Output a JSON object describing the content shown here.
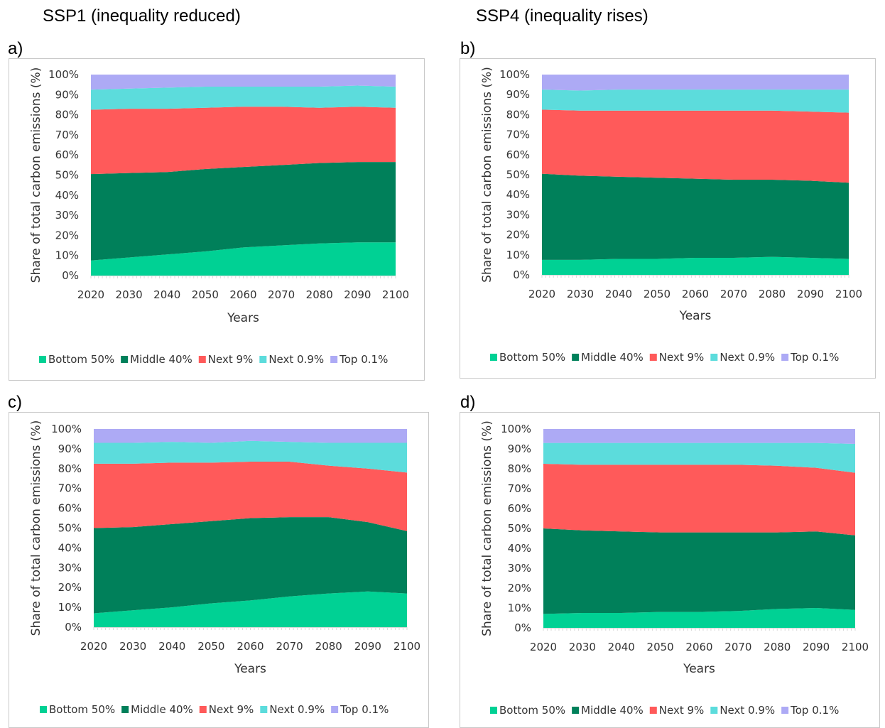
{
  "headings": {
    "left": "SSP1 (inequality reduced)",
    "right": "SSP4 (inequality rises)"
  },
  "colors": {
    "Bottom 50%": "#00d194",
    "Middle 40%": "#00805a",
    "Next 9%": "#ff5a5a",
    "Next 0.9%": "#5cdcdc",
    "Top 0.1%": "#adaaf5",
    "axis": "#d9d9d9"
  },
  "chart_data": [
    {
      "panel_label": "a)",
      "type": "area",
      "stacked": true,
      "x": [
        2020,
        2030,
        2040,
        2050,
        2060,
        2070,
        2080,
        2090,
        2100
      ],
      "series": [
        {
          "name": "Bottom 50%",
          "values": [
            7.5,
            9,
            10.5,
            12,
            14,
            15,
            16,
            16.5,
            16.5
          ]
        },
        {
          "name": "Middle 40%",
          "values": [
            43,
            42,
            41,
            41,
            40,
            40,
            40,
            40,
            40
          ]
        },
        {
          "name": "Next 9%",
          "values": [
            32,
            32,
            31.5,
            30.5,
            30,
            29,
            27.5,
            27.5,
            27
          ]
        },
        {
          "name": "Next 0.9%",
          "values": [
            10,
            10,
            10.5,
            10.5,
            10,
            10,
            10.5,
            10.5,
            10.5
          ]
        },
        {
          "name": "Top 0.1%",
          "values": [
            7.5,
            7,
            6.5,
            6,
            6,
            6,
            6,
            5.5,
            6
          ]
        }
      ],
      "xlabel": "Years",
      "ylabel": "Share of total carbon emissions (%)",
      "ylim": [
        0,
        100
      ],
      "yticks": [
        "0%",
        "10%",
        "20%",
        "30%",
        "40%",
        "50%",
        "60%",
        "70%",
        "80%",
        "90%",
        "100%"
      ],
      "xticks": [
        "2020",
        "2030",
        "2040",
        "2050",
        "2060",
        "2070",
        "2080",
        "2090",
        "2100"
      ],
      "legend": [
        "Bottom 50%",
        "Middle 40%",
        "Next 9%",
        "Next 0.9%",
        "Top 0.1%"
      ],
      "legend_position": "bottom"
    },
    {
      "panel_label": "b)",
      "type": "area",
      "stacked": true,
      "x": [
        2020,
        2030,
        2040,
        2050,
        2060,
        2070,
        2080,
        2090,
        2100
      ],
      "series": [
        {
          "name": "Bottom 50%",
          "values": [
            7.5,
            7.5,
            8,
            8,
            8.5,
            8.5,
            9,
            8.5,
            8
          ]
        },
        {
          "name": "Middle 40%",
          "values": [
            43,
            42,
            41,
            40.5,
            39.5,
            39,
            38.5,
            38.5,
            38
          ]
        },
        {
          "name": "Next 9%",
          "values": [
            32,
            32.5,
            33,
            33.5,
            34,
            34.5,
            34.5,
            34.5,
            35
          ]
        },
        {
          "name": "Next 0.9%",
          "values": [
            10,
            10,
            10.5,
            10.5,
            10.5,
            10.5,
            10.5,
            11,
            11.5
          ]
        },
        {
          "name": "Top 0.1%",
          "values": [
            7.5,
            8,
            7.5,
            7.5,
            7.5,
            7.5,
            7.5,
            7.5,
            7.5
          ]
        }
      ],
      "xlabel": "Years",
      "ylabel": "Share of total carbon emissions (%)",
      "ylim": [
        0,
        100
      ],
      "yticks": [
        "0%",
        "10%",
        "20%",
        "30%",
        "40%",
        "50%",
        "60%",
        "70%",
        "80%",
        "90%",
        "100%"
      ],
      "xticks": [
        "2020",
        "2030",
        "2040",
        "2050",
        "2060",
        "2070",
        "2080",
        "2090",
        "2100"
      ],
      "legend": [
        "Bottom 50%",
        "Middle 40%",
        "Next 9%",
        "Next 0.9%",
        "Top 0.1%"
      ],
      "legend_position": "bottom"
    },
    {
      "panel_label": "c)",
      "type": "area",
      "stacked": true,
      "x": [
        2020,
        2030,
        2040,
        2050,
        2060,
        2070,
        2080,
        2090,
        2100
      ],
      "series": [
        {
          "name": "Bottom 50%",
          "values": [
            7,
            8.5,
            10,
            12,
            13.5,
            15.5,
            17,
            18,
            17
          ]
        },
        {
          "name": "Middle 40%",
          "values": [
            43,
            42,
            42,
            41.5,
            41.5,
            40,
            38.5,
            35,
            31.5
          ]
        },
        {
          "name": "Next 9%",
          "values": [
            32.5,
            32,
            31,
            29.5,
            28.5,
            28,
            26,
            27,
            29.5
          ]
        },
        {
          "name": "Next 0.9%",
          "values": [
            10.5,
            10.5,
            10.5,
            10,
            10.5,
            10,
            11.5,
            13,
            15
          ]
        },
        {
          "name": "Top 0.1%",
          "values": [
            7,
            7,
            6.5,
            7,
            6,
            6.5,
            7,
            7,
            7
          ]
        }
      ],
      "xlabel": "Years",
      "ylabel": "Share of total carbon emissions (%)",
      "ylim": [
        0,
        100
      ],
      "yticks": [
        "0%",
        "10%",
        "20%",
        "30%",
        "40%",
        "50%",
        "60%",
        "70%",
        "80%",
        "90%",
        "100%"
      ],
      "xticks": [
        "2020",
        "2030",
        "2040",
        "2050",
        "2060",
        "2070",
        "2080",
        "2090",
        "2100"
      ],
      "legend": [
        "Bottom 50%",
        "Middle 40%",
        "Next 9%",
        "Next 0.9%",
        "Top 0.1%"
      ],
      "legend_position": "bottom"
    },
    {
      "panel_label": "d)",
      "type": "area",
      "stacked": true,
      "x": [
        2020,
        2030,
        2040,
        2050,
        2060,
        2070,
        2080,
        2090,
        2100
      ],
      "series": [
        {
          "name": "Bottom 50%",
          "values": [
            7,
            7.5,
            7.5,
            8,
            8,
            8.5,
            9.5,
            10,
            9
          ]
        },
        {
          "name": "Middle 40%",
          "values": [
            43,
            41.5,
            41,
            40,
            40,
            39.5,
            38.5,
            38.5,
            37.5
          ]
        },
        {
          "name": "Next 9%",
          "values": [
            32.5,
            33,
            33.5,
            34,
            34,
            34,
            33.5,
            32,
            31.5
          ]
        },
        {
          "name": "Next 0.9%",
          "values": [
            10.5,
            11,
            11,
            11,
            11,
            11,
            11.5,
            12.5,
            14.5
          ]
        },
        {
          "name": "Top 0.1%",
          "values": [
            7,
            7,
            7,
            7,
            7,
            7,
            7,
            7,
            7.5
          ]
        }
      ],
      "xlabel": "Years",
      "ylabel": "Share of total carbon emissions (%)",
      "ylim": [
        0,
        100
      ],
      "yticks": [
        "0%",
        "10%",
        "20%",
        "30%",
        "40%",
        "50%",
        "60%",
        "70%",
        "80%",
        "90%",
        "100%"
      ],
      "xticks": [
        "2020",
        "2030",
        "2040",
        "2050",
        "2060",
        "2070",
        "2080",
        "2090",
        "2100"
      ],
      "legend": [
        "Bottom 50%",
        "Middle 40%",
        "Next 9%",
        "Next 0.9%",
        "Top 0.1%"
      ],
      "legend_position": "bottom"
    }
  ]
}
